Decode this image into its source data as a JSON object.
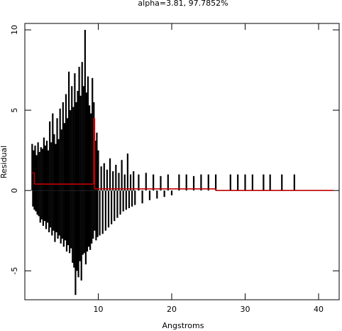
{
  "chart_data": {
    "type": "spike",
    "title": "alpha=3.81, 97.7852%",
    "xlabel": "Angstroms",
    "ylabel": "Residual",
    "xlim": [
      0,
      42.8
    ],
    "ylim": [
      -6.8,
      10.4
    ],
    "xticks": [
      10,
      20,
      30,
      40
    ],
    "yticks": [
      -5,
      0,
      5,
      10
    ],
    "color": "#000000",
    "x": [
      1.0,
      1.1,
      1.2,
      1.3,
      1.4,
      1.5,
      1.6,
      1.7,
      1.8,
      1.9,
      2.0,
      2.1,
      2.2,
      2.3,
      2.4,
      2.5,
      2.6,
      2.7,
      2.8,
      2.9,
      3.0,
      3.1,
      3.2,
      3.3,
      3.4,
      3.5,
      3.6,
      3.7,
      3.8,
      3.9,
      4.0,
      4.1,
      4.2,
      4.3,
      4.4,
      4.5,
      4.6,
      4.7,
      4.8,
      4.9,
      5.0,
      5.1,
      5.2,
      5.3,
      5.4,
      5.5,
      5.6,
      5.7,
      5.8,
      5.9,
      6.0,
      6.1,
      6.2,
      6.3,
      6.4,
      6.5,
      6.6,
      6.7,
      6.8,
      6.9,
      7.0,
      7.1,
      7.2,
      7.3,
      7.4,
      7.5,
      7.6,
      7.7,
      7.8,
      7.9,
      8.0,
      8.1,
      8.2,
      8.3,
      8.4,
      8.5,
      8.6,
      8.7,
      8.8,
      8.9,
      9.0,
      9.1,
      9.2,
      9.3,
      9.4,
      9.5,
      9.6,
      9.7,
      9.8,
      9.9,
      10.0,
      10.2,
      10.4,
      10.6,
      10.8,
      11.0,
      11.2,
      11.4,
      11.6,
      11.8,
      12.0,
      12.2,
      12.4,
      12.6,
      12.8,
      13.0,
      13.2,
      13.4,
      13.6,
      13.8,
      14.0,
      14.2,
      14.4,
      14.6,
      14.8,
      15.0,
      15.5,
      16.0,
      16.5,
      17.0,
      17.5,
      18.0,
      18.5,
      19.0,
      19.5,
      20.0,
      21,
      22,
      23,
      24,
      25,
      26,
      28,
      29,
      30,
      31,
      32.5,
      33.4,
      35,
      36.7
    ],
    "values": [
      2.9,
      -1.0,
      2.5,
      -1.2,
      2.8,
      -1.3,
      2.2,
      -1.5,
      3.0,
      -1.6,
      2.4,
      -2.0,
      2.7,
      -1.8,
      2.6,
      -2.2,
      3.3,
      -1.9,
      2.8,
      -2.4,
      3.1,
      -2.0,
      2.5,
      -2.6,
      4.3,
      -2.3,
      3.0,
      -2.8,
      4.8,
      -2.5,
      3.5,
      -3.2,
      2.9,
      -2.6,
      4.5,
      -3.0,
      3.2,
      -2.8,
      5.1,
      -3.3,
      3.8,
      -3.0,
      5.5,
      -3.5,
      4.2,
      -3.1,
      6.0,
      -3.8,
      4.5,
      -3.4,
      7.4,
      -3.9,
      5.0,
      -3.6,
      6.5,
      -4.5,
      5.2,
      -4.8,
      7.3,
      -6.5,
      5.5,
      -5.0,
      6.2,
      -5.4,
      7.7,
      -4.4,
      5.9,
      -5.6,
      8.0,
      -4.0,
      6.5,
      -3.9,
      10.0,
      -4.6,
      6.1,
      -3.8,
      7.1,
      -3.5,
      5.3,
      -3.7,
      4.8,
      -3.3,
      7.0,
      -3.0,
      5.5,
      -2.5,
      3.1,
      -3.1,
      3.6,
      -2.9,
      2.5,
      -2.8,
      1.5,
      -2.7,
      1.7,
      -2.5,
      1.3,
      -2.3,
      2.0,
      -2.1,
      1.2,
      -1.9,
      1.6,
      -1.7,
      1.1,
      -1.5,
      1.9,
      -1.3,
      1.0,
      -1.2,
      2.3,
      -1.1,
      1.0,
      -1.0,
      1.2,
      -0.9,
      1.0,
      -0.8,
      1.1,
      -0.6,
      1.0,
      -0.5,
      0.9,
      -0.4,
      1.0,
      -0.3,
      1.0,
      1.0,
      0.9,
      1.0,
      1.0,
      1.0,
      1.0,
      1.0,
      1.0,
      1.0,
      1.0,
      1.0,
      1.0,
      1.0
    ],
    "step": {
      "color": "#c00000",
      "edges": [
        1.0,
        1.3,
        9.4,
        9.5,
        26,
        42
      ],
      "levels": [
        1.1,
        0.4,
        4.5,
        0.1,
        0.0
      ]
    }
  }
}
